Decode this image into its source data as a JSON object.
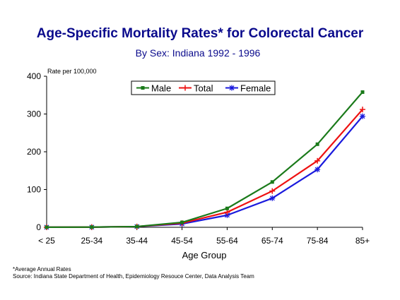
{
  "chart_data": {
    "type": "line",
    "title": "Age-Specific Mortality Rates* for Colorectal Cancer",
    "subtitle": "By Sex:  Indiana 1992 - 1996",
    "ylabel": "Rate per 100,000",
    "xlabel": "Age Group",
    "categories": [
      "< 25",
      "25-34",
      "35-44",
      "45-54",
      "55-64",
      "65-74",
      "75-84",
      "85+"
    ],
    "ylim": [
      0,
      400
    ],
    "yticks": [
      "0",
      "100",
      "200",
      "300",
      "400"
    ],
    "series": [
      {
        "name": "Male",
        "color": "#1a7a1a",
        "marker": "square",
        "values": [
          0.2,
          0.5,
          2,
          13,
          50,
          120,
          220,
          358
        ]
      },
      {
        "name": "Total",
        "color": "#ee1111",
        "marker": "plus",
        "values": [
          0.2,
          0.5,
          2,
          11,
          40,
          96,
          176,
          312
        ]
      },
      {
        "name": "Female",
        "color": "#1a1add",
        "marker": "star",
        "values": [
          0.2,
          0.5,
          2,
          9,
          32,
          77,
          153,
          294
        ]
      }
    ],
    "legend_position": "top-center",
    "grid": false,
    "footnotes": [
      "*Average Annual Rates",
      "Source:  Indiana State Department of Health, Epidemiology Resouce Center, Data Analysis Team"
    ],
    "title_color": "#0a0a8c",
    "subtitle_color": "#0a0a8c"
  }
}
